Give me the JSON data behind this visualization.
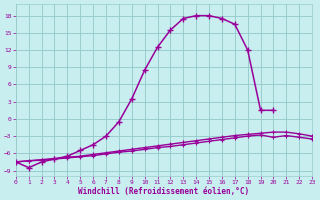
{
  "background_color": "#c8eef0",
  "grid_color": "#99cccc",
  "line_color": "#990099",
  "xlabel": "Windchill (Refroidissement éolien,°C)",
  "xlim": [
    0,
    23
  ],
  "ylim": [
    -10,
    20
  ],
  "x_ticks": [
    0,
    1,
    2,
    3,
    4,
    5,
    6,
    7,
    8,
    9,
    10,
    11,
    12,
    13,
    14,
    15,
    16,
    17,
    18,
    19,
    20,
    21,
    22,
    23
  ],
  "y_ticks": [
    -9,
    -6,
    -3,
    0,
    3,
    6,
    9,
    12,
    15,
    18
  ],
  "curve1_x": [
    0,
    1,
    2,
    3,
    4,
    5,
    6,
    7,
    8,
    9,
    10,
    11,
    12,
    13,
    14,
    15,
    16,
    17,
    18,
    19,
    20
  ],
  "curve1_y": [
    -7.5,
    -8.5,
    -7.5,
    -7.0,
    -6.5,
    -5.5,
    -4.5,
    -3.0,
    -0.5,
    3.5,
    8.5,
    12.5,
    15.5,
    17.5,
    18.0,
    18.0,
    17.5,
    16.5,
    12.0,
    1.5,
    1.5
  ],
  "curve2_x": [
    0,
    1,
    2,
    3,
    4,
    5,
    6,
    7,
    8,
    9,
    10,
    11,
    12,
    13,
    14,
    15,
    16,
    17,
    18,
    19,
    20,
    21,
    22,
    23
  ],
  "curve2_y": [
    -7.5,
    -7.3,
    -7.1,
    -6.9,
    -6.7,
    -6.5,
    -6.2,
    -5.9,
    -5.6,
    -5.3,
    -5.0,
    -4.7,
    -4.4,
    -4.1,
    -3.8,
    -3.5,
    -3.2,
    -2.9,
    -2.7,
    -2.5,
    -2.3,
    -2.3,
    -2.6,
    -3.0
  ],
  "curve3_x": [
    0,
    1,
    2,
    3,
    4,
    5,
    6,
    7,
    8,
    9,
    10,
    11,
    12,
    13,
    14,
    15,
    16,
    17,
    18,
    19,
    20,
    21,
    22,
    23
  ],
  "curve3_y": [
    -7.5,
    -7.3,
    -7.2,
    -7.0,
    -6.8,
    -6.6,
    -6.4,
    -6.1,
    -5.8,
    -5.6,
    -5.3,
    -5.0,
    -4.8,
    -4.5,
    -4.2,
    -3.9,
    -3.6,
    -3.3,
    -3.0,
    -2.8,
    -3.2,
    -2.9,
    -3.2,
    -3.5
  ]
}
